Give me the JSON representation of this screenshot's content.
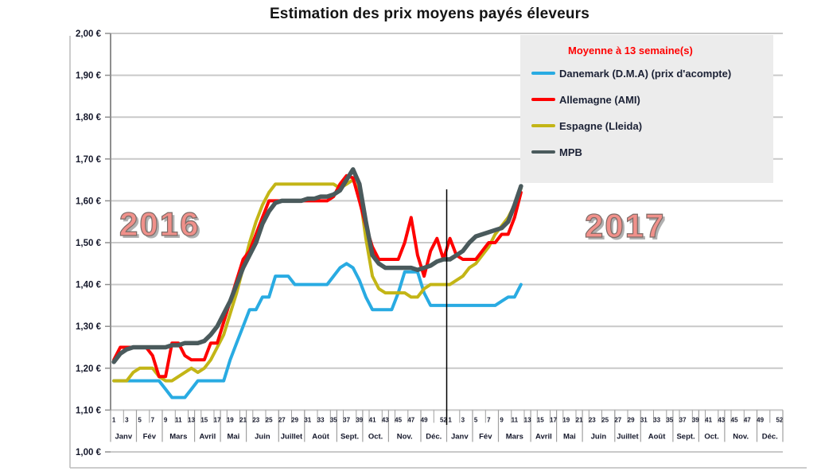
{
  "title": "Estimation des prix moyens payés éleveurs",
  "years": [
    "2016",
    "2017"
  ],
  "legend": {
    "title": "Moyenne à  13 semaine(s)",
    "items": [
      {
        "id": "danemark",
        "label": "Danemark (D.M.A) (prix d'acompte)",
        "color": "#29abe2"
      },
      {
        "id": "allemagne",
        "label": "Allemagne (AMI)",
        "color": "#fe0000"
      },
      {
        "id": "espagne",
        "label": "Espagne (Lleida)",
        "color": "#c3b516"
      },
      {
        "id": "mpb",
        "label": "MPB",
        "color": "#4a5a5c"
      }
    ]
  },
  "colors": {
    "gridline": "#c9c9c9",
    "axis": "#8f8f8f",
    "tick": "#a0a0a0",
    "frame": "#bcbcbc",
    "year_separator": "#000000",
    "legend_bg": "#ececec",
    "legend_title": "#ff0000",
    "text_dark": "#15182b",
    "year_label": "#f0908a"
  },
  "chart_data": {
    "type": "line",
    "title": "Estimation des prix moyens payés éleveurs",
    "legend_title": "Moyenne à  13 semaine(s)",
    "ylim": [
      1.0,
      2.0
    ],
    "ytick_step": 0.1,
    "ytick_labels": [
      "2,00 €",
      "1,90 €",
      "1,80 €",
      "1,70 €",
      "1,60 €",
      "1,50 €",
      "1,40 €",
      "1,30 €",
      "1,20 €",
      "1,10 €",
      "1,00 €"
    ],
    "grid": "horizontal-only",
    "legend_position": "top-right",
    "x_axis": {
      "years": [
        "2016",
        "2017"
      ],
      "weeks_per_year": 52,
      "week_labels": [
        "1",
        "3",
        "5",
        "7",
        "9",
        "11",
        "13",
        "15",
        "17",
        "19",
        "21",
        "23",
        "25",
        "27",
        "29",
        "31",
        "33",
        "35",
        "37",
        "39",
        "41",
        "43",
        "45",
        "47",
        "49",
        "52"
      ],
      "months": [
        {
          "label": "Janv",
          "weeks": 4
        },
        {
          "label": "Fév",
          "weeks": 4
        },
        {
          "label": "Mars",
          "weeks": 5
        },
        {
          "label": "Avril",
          "weeks": 4
        },
        {
          "label": "Mai",
          "weeks": 4
        },
        {
          "label": "Juin",
          "weeks": 5
        },
        {
          "label": "Juillet",
          "weeks": 4
        },
        {
          "label": "Août",
          "weeks": 5
        },
        {
          "label": "Sept.",
          "weeks": 4
        },
        {
          "label": "Oct.",
          "weeks": 4
        },
        {
          "label": "Nov.",
          "weeks": 5
        },
        {
          "label": "Déc.",
          "weeks": 4
        }
      ]
    },
    "year_separator_week": 52,
    "note": "values are EUR per week, weeks 1-52 of 2016 followed by weeks 1-12 of 2017",
    "series": [
      {
        "id": "danemark",
        "name": "Danemark (D.M.A) (prix d'acompte)",
        "color": "#29abe2",
        "width": 4,
        "values": [
          1.17,
          1.17,
          1.17,
          1.17,
          1.17,
          1.17,
          1.17,
          1.17,
          1.15,
          1.13,
          1.13,
          1.13,
          1.15,
          1.17,
          1.17,
          1.17,
          1.17,
          1.17,
          1.22,
          1.26,
          1.3,
          1.34,
          1.34,
          1.37,
          1.37,
          1.42,
          1.42,
          1.42,
          1.4,
          1.4,
          1.4,
          1.4,
          1.4,
          1.4,
          1.42,
          1.44,
          1.45,
          1.44,
          1.41,
          1.37,
          1.34,
          1.34,
          1.34,
          1.34,
          1.38,
          1.43,
          1.43,
          1.43,
          1.38,
          1.35,
          1.35,
          1.35,
          1.35,
          1.35,
          1.35,
          1.35,
          1.35,
          1.35,
          1.35,
          1.35,
          1.36,
          1.37,
          1.37,
          1.4
        ]
      },
      {
        "id": "espagne",
        "name": "Espagne (Lleida)",
        "color": "#c3b516",
        "width": 4,
        "values": [
          1.17,
          1.17,
          1.17,
          1.19,
          1.2,
          1.2,
          1.2,
          1.18,
          1.17,
          1.17,
          1.18,
          1.19,
          1.2,
          1.19,
          1.2,
          1.22,
          1.25,
          1.28,
          1.33,
          1.38,
          1.44,
          1.5,
          1.55,
          1.59,
          1.62,
          1.64,
          1.64,
          1.64,
          1.64,
          1.64,
          1.64,
          1.64,
          1.64,
          1.64,
          1.64,
          1.63,
          1.64,
          1.65,
          1.62,
          1.51,
          1.42,
          1.39,
          1.38,
          1.38,
          1.38,
          1.38,
          1.37,
          1.37,
          1.39,
          1.4,
          1.4,
          1.4,
          1.4,
          1.41,
          1.42,
          1.44,
          1.45,
          1.47,
          1.49,
          1.52,
          1.54,
          1.56,
          1.59,
          1.63
        ]
      },
      {
        "id": "allemagne",
        "name": "Allemagne (AMI)",
        "color": "#fe0000",
        "width": 4,
        "values": [
          1.22,
          1.25,
          1.25,
          1.25,
          1.25,
          1.25,
          1.23,
          1.18,
          1.18,
          1.26,
          1.26,
          1.23,
          1.22,
          1.22,
          1.22,
          1.26,
          1.26,
          1.31,
          1.36,
          1.41,
          1.46,
          1.48,
          1.52,
          1.56,
          1.6,
          1.6,
          1.6,
          1.6,
          1.6,
          1.6,
          1.6,
          1.6,
          1.6,
          1.6,
          1.61,
          1.64,
          1.66,
          1.655,
          1.6,
          1.54,
          1.49,
          1.46,
          1.46,
          1.46,
          1.46,
          1.5,
          1.56,
          1.47,
          1.42,
          1.48,
          1.51,
          1.46,
          1.51,
          1.47,
          1.46,
          1.46,
          1.46,
          1.48,
          1.5,
          1.5,
          1.52,
          1.52,
          1.56,
          1.62
        ]
      },
      {
        "id": "mpb",
        "name": "MPB",
        "color": "#4a5a5c",
        "width": 5.5,
        "values": [
          1.215,
          1.235,
          1.245,
          1.25,
          1.25,
          1.25,
          1.25,
          1.25,
          1.25,
          1.255,
          1.255,
          1.26,
          1.26,
          1.26,
          1.265,
          1.28,
          1.3,
          1.33,
          1.36,
          1.4,
          1.44,
          1.47,
          1.5,
          1.545,
          1.575,
          1.595,
          1.6,
          1.6,
          1.6,
          1.6,
          1.605,
          1.605,
          1.61,
          1.61,
          1.615,
          1.625,
          1.65,
          1.675,
          1.64,
          1.55,
          1.47,
          1.45,
          1.44,
          1.44,
          1.44,
          1.44,
          1.44,
          1.435,
          1.44,
          1.445,
          1.455,
          1.46,
          1.46,
          1.47,
          1.48,
          1.5,
          1.515,
          1.52,
          1.525,
          1.53,
          1.535,
          1.55,
          1.59,
          1.635
        ]
      }
    ]
  }
}
